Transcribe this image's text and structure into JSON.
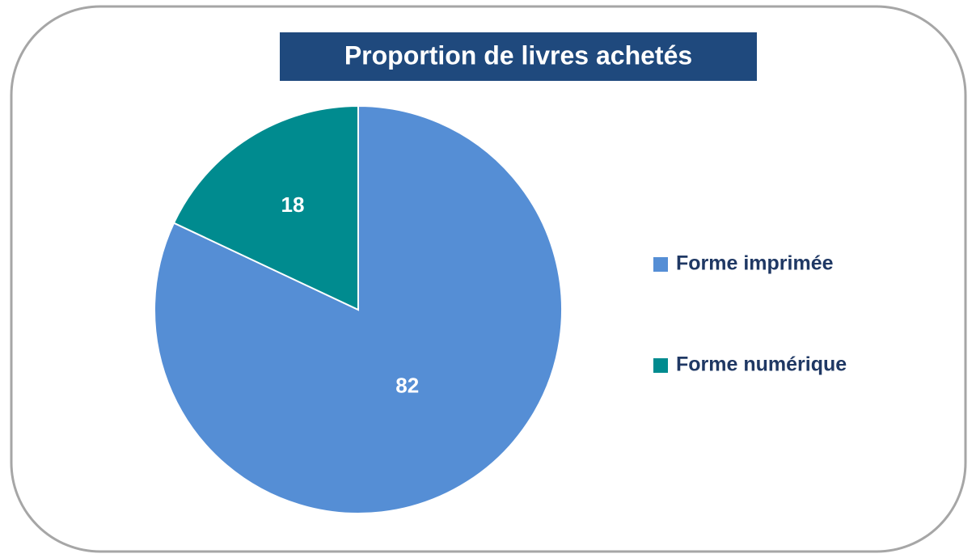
{
  "chart_data": {
    "type": "pie",
    "title": "Proportion de livres achetés",
    "categories": [
      "Forme imprimée",
      "Forme numérique"
    ],
    "values": [
      82,
      18
    ],
    "colors": [
      "#558ed5",
      "#008b8f"
    ],
    "legend": "right"
  }
}
